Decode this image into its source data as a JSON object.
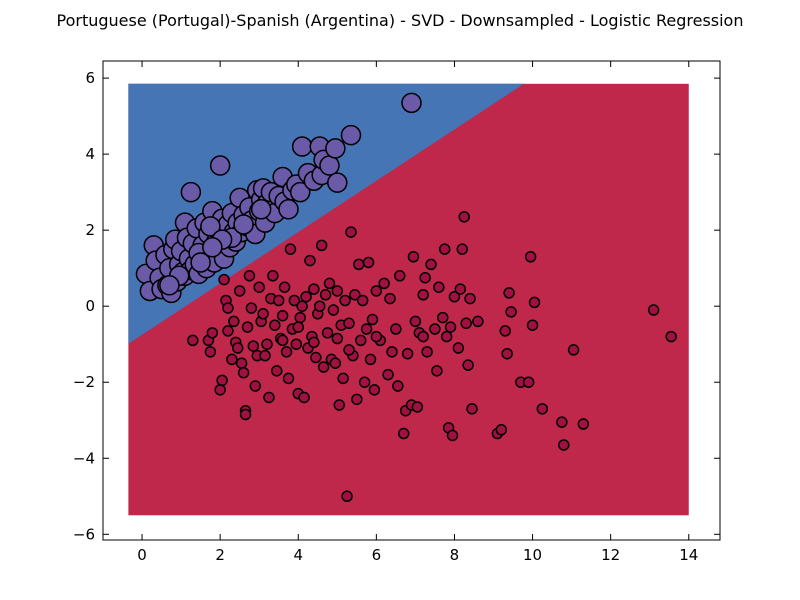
{
  "chart_data": {
    "type": "scatter",
    "title": "Portuguese (Portugal)-Spanish (Argentina) - SVD - Downsampled - Logistic Regression",
    "xlabel": "",
    "ylabel": "",
    "xlim": [
      -1,
      14.8
    ],
    "ylim": [
      -6.15,
      6.45
    ],
    "xticks": [
      0,
      2,
      4,
      6,
      8,
      10,
      12,
      14
    ],
    "yticks": [
      -6,
      -4,
      -2,
      0,
      2,
      4,
      6
    ],
    "xtick_labels": [
      "0",
      "2",
      "4",
      "6",
      "8",
      "10",
      "12",
      "14"
    ],
    "ytick_labels": [
      "−6",
      "−4",
      "−2",
      "0",
      "2",
      "4",
      "6"
    ],
    "grid": false,
    "legend": "none",
    "decision_region": {
      "x_range": [
        -0.35,
        14.0
      ],
      "y_range": [
        -5.5,
        5.85
      ],
      "boundary_line": {
        "intercept": -0.75,
        "slope": 0.675
      },
      "upper_color": "#4575b4",
      "lower_color": "#c0284b"
    },
    "series": [
      {
        "class": "upper",
        "color": "#6a5aa8",
        "marker_size": "large",
        "points": [
          [
            0.1,
            0.85
          ],
          [
            0.2,
            0.4
          ],
          [
            0.3,
            1.6
          ],
          [
            0.35,
            1.2
          ],
          [
            0.45,
            0.75
          ],
          [
            0.5,
            0.45
          ],
          [
            0.6,
            1.35
          ],
          [
            0.65,
            0.55
          ],
          [
            0.7,
            1.0
          ],
          [
            0.75,
            0.35
          ],
          [
            0.8,
            1.5
          ],
          [
            0.85,
            1.75
          ],
          [
            0.9,
            0.65
          ],
          [
            0.95,
            1.1
          ],
          [
            1.0,
            1.45
          ],
          [
            1.05,
            0.9
          ],
          [
            1.1,
            0.8
          ],
          [
            1.1,
            2.2
          ],
          [
            1.15,
            1.8
          ],
          [
            1.2,
            1.25
          ],
          [
            1.25,
            0.95
          ],
          [
            1.3,
            1.65
          ],
          [
            1.35,
            1.1
          ],
          [
            1.4,
            2.05
          ],
          [
            1.45,
            0.85
          ],
          [
            1.5,
            1.35
          ],
          [
            1.55,
            1.6
          ],
          [
            1.6,
            2.2
          ],
          [
            1.65,
            1.0
          ],
          [
            1.7,
            1.9
          ],
          [
            1.75,
            1.4
          ],
          [
            1.8,
            2.5
          ],
          [
            1.85,
            1.15
          ],
          [
            1.9,
            1.7
          ],
          [
            1.95,
            2.0
          ],
          [
            2.0,
            1.5
          ],
          [
            2.05,
            2.3
          ],
          [
            2.1,
            1.25
          ],
          [
            2.15,
            1.85
          ],
          [
            2.2,
            2.15
          ],
          [
            2.25,
            1.55
          ],
          [
            2.3,
            2.45
          ],
          [
            2.35,
            1.95
          ],
          [
            2.4,
            1.7
          ],
          [
            2.45,
            2.2
          ],
          [
            2.5,
            2.85
          ],
          [
            2.55,
            1.95
          ],
          [
            2.6,
            2.4
          ],
          [
            2.7,
            2.1
          ],
          [
            2.75,
            2.6
          ],
          [
            2.8,
            2.25
          ],
          [
            2.9,
            1.9
          ],
          [
            2.95,
            3.05
          ],
          [
            3.0,
            2.5
          ],
          [
            3.05,
            2.8
          ],
          [
            3.1,
            3.1
          ],
          [
            3.15,
            2.2
          ],
          [
            3.2,
            2.7
          ],
          [
            3.3,
            3.0
          ],
          [
            3.4,
            2.45
          ],
          [
            3.5,
            2.9
          ],
          [
            3.6,
            3.4
          ],
          [
            3.65,
            2.75
          ],
          [
            3.75,
            2.55
          ],
          [
            3.85,
            3.05
          ],
          [
            3.95,
            3.2
          ],
          [
            4.05,
            3.0
          ],
          [
            4.1,
            4.2
          ],
          [
            4.25,
            3.5
          ],
          [
            4.4,
            3.3
          ],
          [
            4.55,
            4.2
          ],
          [
            4.6,
            3.45
          ],
          [
            4.65,
            3.85
          ],
          [
            4.8,
            3.7
          ],
          [
            4.95,
            4.15
          ],
          [
            5.0,
            3.25
          ],
          [
            5.35,
            4.5
          ],
          [
            6.9,
            5.35
          ],
          [
            2.0,
            3.7
          ],
          [
            1.25,
            3.0
          ],
          [
            1.75,
            2.1
          ],
          [
            2.3,
            1.8
          ],
          [
            0.95,
            0.8
          ],
          [
            1.45,
            1.4
          ],
          [
            2.6,
            2.15
          ],
          [
            3.05,
            2.55
          ],
          [
            1.5,
            1.15
          ],
          [
            2.05,
            1.75
          ],
          [
            0.7,
            0.55
          ],
          [
            1.8,
            1.55
          ]
        ]
      },
      {
        "class": "lower",
        "color": "#a01040",
        "marker_size": "small",
        "points": [
          [
            1.3,
            -0.9
          ],
          [
            1.7,
            -0.9
          ],
          [
            1.75,
            -1.2
          ],
          [
            1.8,
            -0.7
          ],
          [
            2.0,
            -2.2
          ],
          [
            2.05,
            -1.95
          ],
          [
            2.1,
            0.7
          ],
          [
            2.15,
            0.15
          ],
          [
            2.2,
            -0.65
          ],
          [
            2.3,
            -1.4
          ],
          [
            2.35,
            -0.4
          ],
          [
            2.4,
            -0.95
          ],
          [
            2.45,
            -1.1
          ],
          [
            2.5,
            0.4
          ],
          [
            2.55,
            -1.5
          ],
          [
            2.6,
            -1.75
          ],
          [
            2.65,
            -2.75
          ],
          [
            2.65,
            -2.85
          ],
          [
            2.7,
            -0.55
          ],
          [
            2.75,
            0.8
          ],
          [
            2.8,
            -0.05
          ],
          [
            2.85,
            -1.05
          ],
          [
            2.9,
            -2.1
          ],
          [
            2.95,
            -1.3
          ],
          [
            3.0,
            0.5
          ],
          [
            3.05,
            -0.4
          ],
          [
            3.1,
            -0.2
          ],
          [
            3.15,
            -1.3
          ],
          [
            3.2,
            -1.0
          ],
          [
            3.25,
            -2.4
          ],
          [
            3.3,
            0.2
          ],
          [
            3.35,
            0.8
          ],
          [
            3.4,
            -0.5
          ],
          [
            3.45,
            -1.7
          ],
          [
            3.5,
            0.15
          ],
          [
            3.55,
            -0.85
          ],
          [
            3.6,
            -0.25
          ],
          [
            3.65,
            0.5
          ],
          [
            3.7,
            -1.2
          ],
          [
            3.75,
            -1.9
          ],
          [
            3.8,
            1.5
          ],
          [
            3.85,
            -0.6
          ],
          [
            3.9,
            0.15
          ],
          [
            3.95,
            -1.0
          ],
          [
            4.0,
            -2.3
          ],
          [
            4.05,
            -0.3
          ],
          [
            4.1,
            0.0
          ],
          [
            4.15,
            -2.4
          ],
          [
            4.2,
            0.25
          ],
          [
            4.25,
            -1.1
          ],
          [
            4.3,
            1.2
          ],
          [
            4.35,
            -0.8
          ],
          [
            4.4,
            0.45
          ],
          [
            4.45,
            -1.35
          ],
          [
            4.5,
            -0.2
          ],
          [
            4.55,
            0.0
          ],
          [
            4.6,
            1.6
          ],
          [
            4.65,
            -1.6
          ],
          [
            4.7,
            0.3
          ],
          [
            4.75,
            -0.7
          ],
          [
            4.8,
            0.6
          ],
          [
            4.85,
            -1.4
          ],
          [
            4.9,
            -0.1
          ],
          [
            4.95,
            -1.5
          ],
          [
            5.0,
            0.4
          ],
          [
            5.05,
            -2.6
          ],
          [
            5.1,
            -0.5
          ],
          [
            5.15,
            -1.9
          ],
          [
            5.2,
            0.15
          ],
          [
            5.25,
            -5.0
          ],
          [
            5.3,
            -0.45
          ],
          [
            5.35,
            1.95
          ],
          [
            5.4,
            -1.3
          ],
          [
            5.45,
            0.3
          ],
          [
            5.5,
            -2.45
          ],
          [
            5.55,
            1.1
          ],
          [
            5.6,
            -0.9
          ],
          [
            5.65,
            0.15
          ],
          [
            5.7,
            -2.0
          ],
          [
            5.75,
            -0.6
          ],
          [
            5.8,
            1.15
          ],
          [
            5.85,
            -1.4
          ],
          [
            5.9,
            -0.35
          ],
          [
            5.95,
            -2.2
          ],
          [
            6.0,
            0.4
          ],
          [
            6.1,
            -0.9
          ],
          [
            6.2,
            0.6
          ],
          [
            6.3,
            -1.8
          ],
          [
            6.35,
            0.2
          ],
          [
            6.4,
            -1.2
          ],
          [
            6.5,
            -0.6
          ],
          [
            6.55,
            -2.1
          ],
          [
            6.6,
            0.8
          ],
          [
            6.7,
            -3.35
          ],
          [
            6.75,
            -2.75
          ],
          [
            6.8,
            -1.25
          ],
          [
            6.9,
            -2.6
          ],
          [
            6.95,
            1.3
          ],
          [
            7.0,
            -0.4
          ],
          [
            7.05,
            -2.65
          ],
          [
            7.1,
            -0.7
          ],
          [
            7.2,
            0.3
          ],
          [
            7.25,
            0.75
          ],
          [
            7.3,
            -1.2
          ],
          [
            7.4,
            1.1
          ],
          [
            7.5,
            -0.6
          ],
          [
            7.55,
            -1.7
          ],
          [
            7.6,
            0.5
          ],
          [
            7.7,
            -0.3
          ],
          [
            7.75,
            1.5
          ],
          [
            7.8,
            -0.8
          ],
          [
            7.85,
            -3.2
          ],
          [
            7.9,
            -0.55
          ],
          [
            7.95,
            -3.4
          ],
          [
            8.0,
            0.25
          ],
          [
            8.1,
            -1.1
          ],
          [
            8.15,
            0.45
          ],
          [
            8.2,
            1.5
          ],
          [
            8.25,
            2.35
          ],
          [
            8.3,
            -0.45
          ],
          [
            8.35,
            -1.55
          ],
          [
            8.4,
            0.2
          ],
          [
            8.45,
            -2.7
          ],
          [
            8.6,
            -0.4
          ],
          [
            9.1,
            -3.35
          ],
          [
            9.2,
            -3.25
          ],
          [
            9.3,
            -0.65
          ],
          [
            9.35,
            -1.25
          ],
          [
            9.4,
            0.35
          ],
          [
            9.45,
            -0.15
          ],
          [
            9.7,
            -2.0
          ],
          [
            9.9,
            -2.0
          ],
          [
            9.95,
            1.3
          ],
          [
            10.0,
            -0.5
          ],
          [
            10.05,
            0.1
          ],
          [
            10.25,
            -2.7
          ],
          [
            10.75,
            -3.05
          ],
          [
            10.8,
            -3.65
          ],
          [
            11.05,
            -1.15
          ],
          [
            11.3,
            -3.1
          ],
          [
            13.1,
            -0.1
          ],
          [
            13.55,
            -0.8
          ],
          [
            2.2,
            -0.05
          ],
          [
            3.6,
            -0.9
          ],
          [
            4.0,
            -0.55
          ],
          [
            4.4,
            -0.95
          ],
          [
            5.0,
            -0.85
          ],
          [
            5.3,
            -1.15
          ],
          [
            6.0,
            -0.8
          ],
          [
            7.2,
            -0.8
          ]
        ]
      }
    ]
  }
}
